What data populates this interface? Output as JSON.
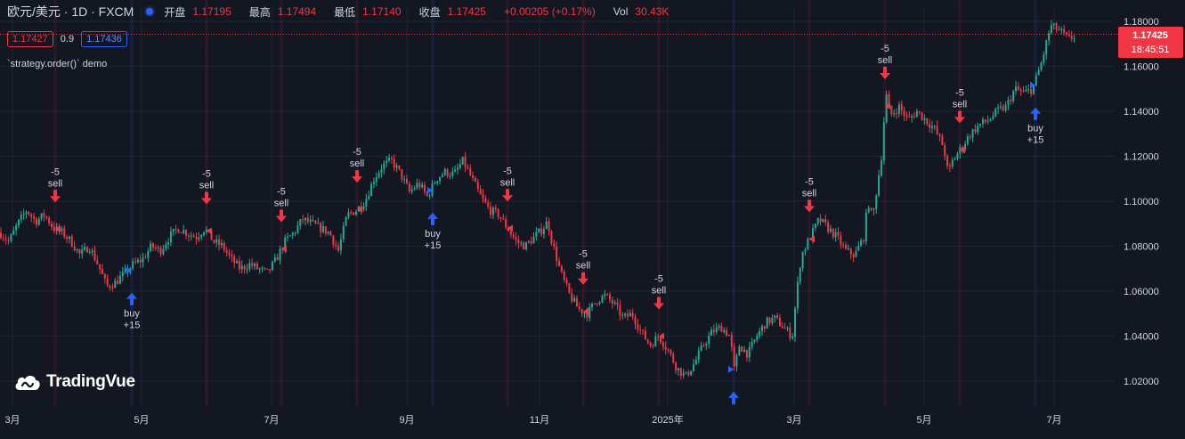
{
  "header": {
    "symbol": "欧元/美元 · 1D · FXCM",
    "open_label": "开盘",
    "open_value": "1.17195",
    "high_label": "最高",
    "high_value": "1.17494",
    "low_label": "最低",
    "low_value": "1.17140",
    "close_label": "收盘",
    "close_value": "1.17425",
    "change": "+0.00205 (+0.17%)",
    "vol_label": "Vol",
    "vol_value": "30.43K"
  },
  "quote": {
    "bid": "1.17427",
    "spread": "0.9",
    "ask": "1.17436"
  },
  "strategy_label": "`strategy.order()` demo",
  "price_label": {
    "price": "1.17425",
    "countdown": "18:45:51"
  },
  "logo_text": "TradingVue",
  "colors": {
    "up": "#22ab94",
    "down": "#f23645",
    "buy": "#2962ff",
    "bg": "#131722",
    "grid": "#1f2433"
  },
  "chart_data": {
    "type": "candlestick",
    "y_axis": {
      "min": 1.01,
      "max": 1.185,
      "ticks": [
        "1.02000",
        "1.04000",
        "1.06000",
        "1.08000",
        "1.10000",
        "1.12000",
        "1.14000",
        "1.16000",
        "1.18000"
      ]
    },
    "x_axis": {
      "ticks": [
        "3月",
        "5月",
        "7月",
        "9月",
        "11月",
        "2025年",
        "3月",
        "5月",
        "7月"
      ]
    },
    "close_path": [
      [
        0,
        1.086
      ],
      [
        10,
        1.082
      ],
      [
        20,
        1.09
      ],
      [
        30,
        1.096
      ],
      [
        40,
        1.091
      ],
      [
        50,
        1.094
      ],
      [
        60,
        1.088
      ],
      [
        70,
        1.086
      ],
      [
        80,
        1.082
      ],
      [
        90,
        1.076
      ],
      [
        100,
        1.08
      ],
      [
        110,
        1.072
      ],
      [
        120,
        1.062
      ],
      [
        130,
        1.064
      ],
      [
        140,
        1.068
      ],
      [
        150,
        1.072
      ],
      [
        160,
        1.074
      ],
      [
        170,
        1.08
      ],
      [
        180,
        1.078
      ],
      [
        190,
        1.084
      ],
      [
        200,
        1.088
      ],
      [
        210,
        1.086
      ],
      [
        220,
        1.084
      ],
      [
        230,
        1.088
      ],
      [
        240,
        1.082
      ],
      [
        250,
        1.08
      ],
      [
        260,
        1.074
      ],
      [
        270,
        1.07
      ],
      [
        280,
        1.072
      ],
      [
        290,
        1.07
      ],
      [
        300,
        1.068
      ],
      [
        310,
        1.074
      ],
      [
        320,
        1.082
      ],
      [
        330,
        1.086
      ],
      [
        340,
        1.092
      ],
      [
        350,
        1.09
      ],
      [
        360,
        1.088
      ],
      [
        370,
        1.086
      ],
      [
        380,
        1.078
      ],
      [
        390,
        1.094
      ],
      [
        400,
        1.096
      ],
      [
        410,
        1.1
      ],
      [
        420,
        1.11
      ],
      [
        430,
        1.116
      ],
      [
        440,
        1.118
      ],
      [
        450,
        1.112
      ],
      [
        460,
        1.104
      ],
      [
        470,
        1.108
      ],
      [
        480,
        1.102
      ],
      [
        490,
        1.11
      ],
      [
        500,
        1.113
      ],
      [
        510,
        1.112
      ],
      [
        520,
        1.118
      ],
      [
        530,
        1.11
      ],
      [
        540,
        1.102
      ],
      [
        550,
        1.096
      ],
      [
        560,
        1.094
      ],
      [
        570,
        1.088
      ],
      [
        580,
        1.082
      ],
      [
        590,
        1.08
      ],
      [
        600,
        1.084
      ],
      [
        610,
        1.088
      ],
      [
        615,
        1.091
      ],
      [
        620,
        1.082
      ],
      [
        630,
        1.068
      ],
      [
        640,
        1.058
      ],
      [
        650,
        1.052
      ],
      [
        660,
        1.05
      ],
      [
        670,
        1.056
      ],
      [
        680,
        1.058
      ],
      [
        690,
        1.054
      ],
      [
        700,
        1.048
      ],
      [
        710,
        1.05
      ],
      [
        720,
        1.042
      ],
      [
        730,
        1.036
      ],
      [
        740,
        1.04
      ],
      [
        750,
        1.034
      ],
      [
        760,
        1.026
      ],
      [
        770,
        1.022
      ],
      [
        780,
        1.028
      ],
      [
        790,
        1.036
      ],
      [
        800,
        1.042
      ],
      [
        810,
        1.044
      ],
      [
        820,
        1.04
      ],
      [
        825,
        1.024
      ],
      [
        830,
        1.036
      ],
      [
        840,
        1.032
      ],
      [
        850,
        1.04
      ],
      [
        860,
        1.046
      ],
      [
        870,
        1.048
      ],
      [
        880,
        1.044
      ],
      [
        890,
        1.04
      ],
      [
        895,
        1.06
      ],
      [
        900,
        1.076
      ],
      [
        910,
        1.084
      ],
      [
        920,
        1.092
      ],
      [
        930,
        1.088
      ],
      [
        940,
        1.084
      ],
      [
        950,
        1.078
      ],
      [
        960,
        1.076
      ],
      [
        970,
        1.084
      ],
      [
        975,
        1.1
      ],
      [
        980,
        1.092
      ],
      [
        985,
        1.106
      ],
      [
        990,
        1.12
      ],
      [
        995,
        1.148
      ],
      [
        1000,
        1.138
      ],
      [
        1010,
        1.142
      ],
      [
        1020,
        1.136
      ],
      [
        1030,
        1.14
      ],
      [
        1040,
        1.136
      ],
      [
        1050,
        1.132
      ],
      [
        1060,
        1.124
      ],
      [
        1065,
        1.112
      ],
      [
        1070,
        1.118
      ],
      [
        1080,
        1.124
      ],
      [
        1090,
        1.13
      ],
      [
        1100,
        1.134
      ],
      [
        1110,
        1.136
      ],
      [
        1120,
        1.14
      ],
      [
        1130,
        1.142
      ],
      [
        1140,
        1.15
      ],
      [
        1150,
        1.148
      ],
      [
        1160,
        1.15
      ],
      [
        1170,
        1.162
      ],
      [
        1180,
        1.178
      ],
      [
        1190,
        1.176
      ],
      [
        1200,
        1.172
      ],
      [
        1210,
        1.174
      ]
    ],
    "signals": [
      {
        "type": "sell",
        "x": 62,
        "label1": "-5",
        "label2": "sell"
      },
      {
        "type": "buy",
        "x": 148,
        "label1": "buy",
        "label2": "+15"
      },
      {
        "type": "sell",
        "x": 232,
        "label1": "-5",
        "label2": "sell"
      },
      {
        "type": "sell",
        "x": 316,
        "label1": "-5",
        "label2": "sell"
      },
      {
        "type": "sell",
        "x": 401,
        "label1": "-5",
        "label2": "sell"
      },
      {
        "type": "buy",
        "x": 486,
        "label1": "buy",
        "label2": "+15"
      },
      {
        "type": "sell",
        "x": 570,
        "label1": "-5",
        "label2": "sell"
      },
      {
        "type": "sell",
        "x": 655,
        "label1": "-5",
        "label2": "sell"
      },
      {
        "type": "sell",
        "x": 740,
        "label1": "-5",
        "label2": "sell"
      },
      {
        "type": "buy",
        "x": 824,
        "label1": "",
        "label2": ""
      },
      {
        "type": "sell",
        "x": 909,
        "label1": "-5",
        "label2": "sell"
      },
      {
        "type": "sell",
        "x": 994,
        "label1": "-5",
        "label2": "sell"
      },
      {
        "type": "sell",
        "x": 1078,
        "label1": "-5",
        "label2": "sell"
      },
      {
        "type": "buy",
        "x": 1163,
        "label1": "buy",
        "label2": "+15"
      }
    ]
  }
}
